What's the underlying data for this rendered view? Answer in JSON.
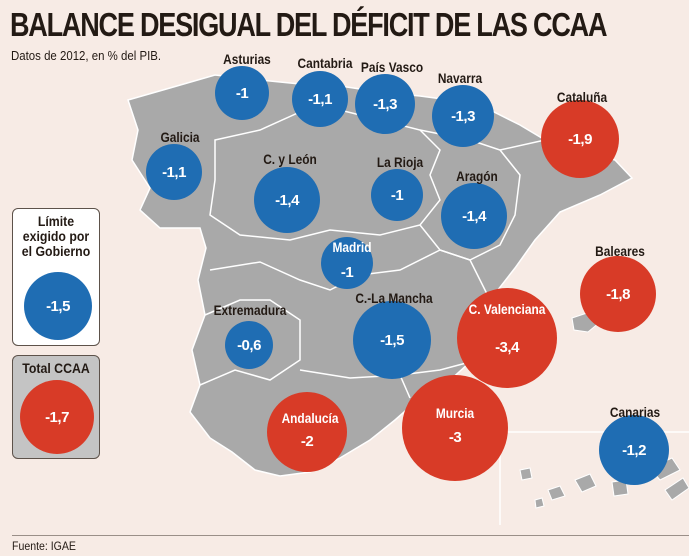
{
  "title": "BALANCE DESIGUAL DEL DÉFICIT DE LAS CCAA",
  "subtitle": "Datos de 2012, en % del PIB.",
  "colors": {
    "within_limit": "#1f6db3",
    "over_limit": "#d83b27",
    "map": "#a9a9a9",
    "background": "#f7ebe5"
  },
  "regions": [
    {
      "name": "Asturias",
      "value": "-1",
      "color": "blue"
    },
    {
      "name": "Cantabria",
      "value": "-1,1",
      "color": "blue"
    },
    {
      "name": "País Vasco",
      "value": "-1,3",
      "color": "blue"
    },
    {
      "name": "Navarra",
      "value": "-1,3",
      "color": "blue"
    },
    {
      "name": "Cataluña",
      "value": "-1,9",
      "color": "red"
    },
    {
      "name": "Galicia",
      "value": "-1,1",
      "color": "blue"
    },
    {
      "name": "C. y León",
      "value": "-1,4",
      "color": "blue"
    },
    {
      "name": "La Rioja",
      "value": "-1",
      "color": "blue"
    },
    {
      "name": "Aragón",
      "value": "-1,4",
      "color": "blue"
    },
    {
      "name": "Madrid",
      "value": "-1",
      "color": "blue"
    },
    {
      "name": "Baleares",
      "value": "-1,8",
      "color": "red"
    },
    {
      "name": "Extremadura",
      "value": "-0,6",
      "color": "blue"
    },
    {
      "name": "C.-La Mancha",
      "value": "-1,5",
      "color": "blue"
    },
    {
      "name": "C. Valenciana",
      "value": "-3,4",
      "color": "red"
    },
    {
      "name": "Andalucía",
      "value": "-2",
      "color": "red"
    },
    {
      "name": "Murcia",
      "value": "-3",
      "color": "red"
    },
    {
      "name": "Canarias",
      "value": "-1,2",
      "color": "blue"
    }
  ],
  "legend": {
    "limit": {
      "label": "Límite exigido por el Gobierno",
      "value": "-1,5"
    },
    "total": {
      "label": "Total CCAA",
      "value": "-1,7"
    }
  },
  "source": "Fuente: IGAE"
}
